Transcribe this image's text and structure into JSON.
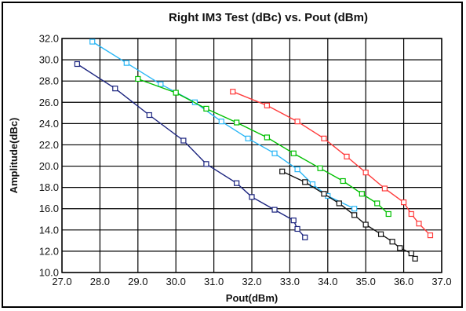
{
  "chart_data": {
    "type": "line",
    "title": "Right IM3 Test (dBc) vs. Pout (dBm)",
    "xlabel": "Pout(dBm)",
    "ylabel": "Amplitude(dBc)",
    "xlim": [
      27.0,
      37.0
    ],
    "ylim": [
      10.0,
      32.0
    ],
    "x_ticks": [
      "27.0",
      "28.0",
      "29.0",
      "30.0",
      "31.0",
      "32.0",
      "33.0",
      "34.0",
      "35.0",
      "36.0",
      "37.0"
    ],
    "y_ticks": [
      "10.0",
      "12.0",
      "14.0",
      "16.0",
      "18.0",
      "20.0",
      "22.0",
      "24.0",
      "26.0",
      "28.0",
      "30.0",
      "32.0"
    ],
    "grid": true,
    "series": [
      {
        "color": "#1a237e",
        "points": [
          [
            27.4,
            29.6
          ],
          [
            28.4,
            27.3
          ],
          [
            29.3,
            24.8
          ],
          [
            30.2,
            22.4
          ],
          [
            30.8,
            20.2
          ],
          [
            31.6,
            18.4
          ],
          [
            32.0,
            17.1
          ],
          [
            32.6,
            15.9
          ],
          [
            33.1,
            14.9
          ],
          [
            33.2,
            14.1
          ],
          [
            33.4,
            13.3
          ]
        ]
      },
      {
        "color": "#29b6f6",
        "points": [
          [
            27.8,
            31.7
          ],
          [
            28.7,
            29.7
          ],
          [
            29.6,
            27.7
          ],
          [
            30.5,
            26.0
          ],
          [
            31.2,
            24.2
          ],
          [
            31.9,
            22.6
          ],
          [
            32.6,
            21.2
          ],
          [
            33.2,
            19.7
          ],
          [
            33.6,
            18.3
          ],
          [
            34.0,
            17.2
          ],
          [
            34.7,
            16.0
          ]
        ]
      },
      {
        "color": "#00c000",
        "points": [
          [
            29.0,
            28.2
          ],
          [
            30.0,
            26.9
          ],
          [
            30.8,
            25.4
          ],
          [
            31.6,
            24.1
          ],
          [
            32.4,
            22.7
          ],
          [
            33.1,
            21.2
          ],
          [
            33.8,
            19.8
          ],
          [
            34.4,
            18.6
          ],
          [
            34.9,
            17.4
          ],
          [
            35.3,
            16.5
          ],
          [
            35.6,
            15.5
          ]
        ]
      },
      {
        "color": "#ff3b3b",
        "points": [
          [
            31.5,
            27.0
          ],
          [
            32.4,
            25.7
          ],
          [
            33.2,
            24.2
          ],
          [
            33.9,
            22.6
          ],
          [
            34.5,
            20.9
          ],
          [
            35.0,
            19.4
          ],
          [
            35.5,
            17.9
          ],
          [
            36.0,
            16.6
          ],
          [
            36.2,
            15.5
          ],
          [
            36.4,
            14.6
          ],
          [
            36.7,
            13.5
          ]
        ]
      },
      {
        "color": "#111111",
        "points": [
          [
            32.8,
            19.5
          ],
          [
            33.4,
            18.5
          ],
          [
            33.9,
            17.4
          ],
          [
            34.3,
            16.5
          ],
          [
            34.7,
            15.4
          ],
          [
            35.0,
            14.5
          ],
          [
            35.4,
            13.6
          ],
          [
            35.7,
            12.9
          ],
          [
            35.9,
            12.3
          ],
          [
            36.2,
            11.8
          ],
          [
            36.3,
            11.3
          ]
        ]
      }
    ]
  }
}
